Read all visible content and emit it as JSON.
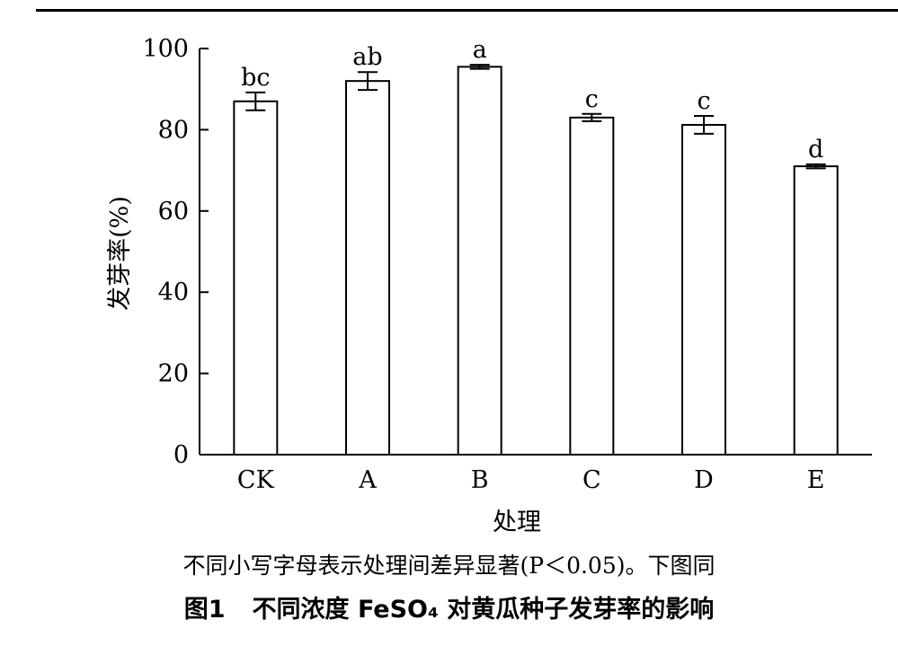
{
  "chart_data": {
    "type": "bar",
    "categories": [
      "CK",
      "A",
      "B",
      "C",
      "D",
      "E"
    ],
    "values": [
      87,
      92,
      95.5,
      83,
      81.2,
      71
    ],
    "errors": [
      2.2,
      2.2,
      0.5,
      0.9,
      2.2,
      0.5
    ],
    "significance_letters": [
      "bc",
      "ab",
      "a",
      "c",
      "c",
      "d"
    ],
    "xlabel": "处理",
    "ylabel": "发芽率(%)",
    "ylim": [
      0,
      100
    ],
    "yticks": [
      0,
      20,
      40,
      60,
      80,
      100
    ],
    "grid": false,
    "bar_fill": "#ffffff",
    "bar_stroke": "#000000"
  },
  "note": "不同小写字母表示处理间差异显著(P＜0.05)。下图同",
  "caption": {
    "number": "图1",
    "title": "不同浓度 FeSO₄ 对黄瓜种子发芽率的影响"
  }
}
